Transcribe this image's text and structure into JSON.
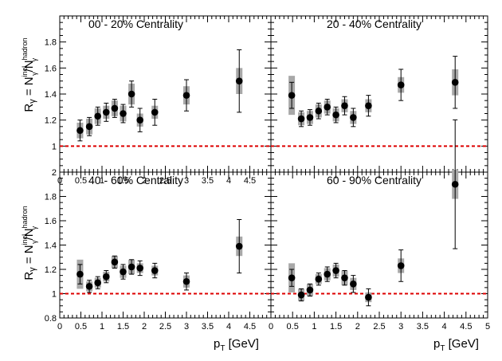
{
  "figure": {
    "y_axis_label": "Rγ = Nγincl/Nγhadron",
    "x_axis_label": "pT [GeV]"
  },
  "chart_data": [
    {
      "type": "scatter",
      "title": "00 - 20% Centrality",
      "xlabel": "",
      "ylabel": "Rγ = Nγincl/Nγhadron",
      "xlim": [
        0,
        5
      ],
      "ylim": [
        0.8,
        2
      ],
      "x_ticks": [
        "0",
        "0.5",
        "1",
        "1.5",
        "2",
        "2.5",
        "3",
        "3.5",
        "4",
        "4.5"
      ],
      "y_ticks": [
        "1",
        "1.2",
        "1.4",
        "1.6",
        "1.8"
      ],
      "reference_line": 1,
      "series": [
        {
          "x": [
            0.48,
            0.7,
            0.9,
            1.1,
            1.3,
            1.5,
            1.7,
            1.9,
            2.25,
            3.0,
            4.25
          ],
          "y": [
            1.12,
            1.15,
            1.23,
            1.26,
            1.29,
            1.25,
            1.4,
            1.2,
            1.26,
            1.39,
            1.5
          ],
          "stat_err": [
            0.08,
            0.07,
            0.07,
            0.07,
            0.07,
            0.07,
            0.1,
            0.09,
            0.1,
            0.12,
            0.24
          ],
          "sys_err": [
            0.06,
            0.06,
            0.06,
            0.05,
            0.06,
            0.06,
            0.08,
            0.05,
            0.05,
            0.07,
            0.1
          ]
        }
      ]
    },
    {
      "type": "scatter",
      "title": "20 - 40% Centrality",
      "xlabel": "",
      "ylabel": "",
      "xlim": [
        0,
        5
      ],
      "ylim": [
        0.8,
        2
      ],
      "x_ticks": [],
      "y_ticks": [],
      "reference_line": 1,
      "series": [
        {
          "x": [
            0.48,
            0.7,
            0.9,
            1.1,
            1.3,
            1.5,
            1.7,
            1.9,
            2.25,
            3.0,
            4.25
          ],
          "y": [
            1.39,
            1.21,
            1.22,
            1.27,
            1.3,
            1.24,
            1.31,
            1.22,
            1.31,
            1.47,
            1.49
          ],
          "stat_err": [
            0.1,
            0.06,
            0.06,
            0.06,
            0.06,
            0.06,
            0.07,
            0.07,
            0.08,
            0.12,
            0.2
          ],
          "sys_err": [
            0.15,
            0.05,
            0.05,
            0.05,
            0.05,
            0.05,
            0.05,
            0.05,
            0.05,
            0.06,
            0.1
          ]
        }
      ]
    },
    {
      "type": "scatter",
      "title": "40 - 60% Centrality",
      "xlabel": "pT [GeV]",
      "ylabel": "Rγ = Nγincl/Nγhadron",
      "xlim": [
        0,
        5
      ],
      "ylim": [
        0.8,
        2
      ],
      "x_ticks": [
        "0",
        "0.5",
        "1",
        "1.5",
        "2",
        "2.5",
        "3",
        "3.5",
        "4",
        "4.5"
      ],
      "y_ticks": [
        "0.8",
        "1",
        "1.2",
        "1.4",
        "1.6",
        "1.8",
        "2"
      ],
      "reference_line": 1,
      "series": [
        {
          "x": [
            0.48,
            0.7,
            0.9,
            1.1,
            1.3,
            1.5,
            1.7,
            1.9,
            2.25,
            3.0,
            4.25
          ],
          "y": [
            1.16,
            1.06,
            1.09,
            1.14,
            1.26,
            1.18,
            1.22,
            1.21,
            1.19,
            1.1,
            1.39
          ],
          "stat_err": [
            0.08,
            0.05,
            0.05,
            0.05,
            0.05,
            0.06,
            0.06,
            0.06,
            0.06,
            0.07,
            0.22
          ],
          "sys_err": [
            0.12,
            0.04,
            0.04,
            0.04,
            0.05,
            0.05,
            0.06,
            0.04,
            0.04,
            0.05,
            0.08
          ]
        }
      ]
    },
    {
      "type": "scatter",
      "title": "60 - 90% Centrality",
      "xlabel": "pT [GeV]",
      "ylabel": "",
      "xlim": [
        0,
        5
      ],
      "ylim": [
        0.8,
        2
      ],
      "x_ticks": [
        "0",
        "0.5",
        "1",
        "1.5",
        "2",
        "2.5",
        "3",
        "3.5",
        "4",
        "4.5",
        "5"
      ],
      "y_ticks": [],
      "reference_line": 1,
      "series": [
        {
          "x": [
            0.48,
            0.7,
            0.9,
            1.1,
            1.3,
            1.5,
            1.7,
            1.9,
            2.25,
            3.0,
            4.25
          ],
          "y": [
            1.13,
            0.99,
            1.03,
            1.12,
            1.16,
            1.19,
            1.13,
            1.08,
            0.97,
            1.23,
            1.9
          ],
          "stat_err": [
            0.07,
            0.05,
            0.05,
            0.05,
            0.06,
            0.06,
            0.06,
            0.07,
            0.07,
            0.13,
            0.53
          ],
          "sys_err": [
            0.12,
            0.05,
            0.05,
            0.04,
            0.05,
            0.05,
            0.06,
            0.05,
            0.04,
            0.06,
            0.12
          ]
        }
      ]
    }
  ],
  "colors": {
    "marker": "#000000",
    "sys_box": "#a8a8a8",
    "reference_line": "#dd0000"
  }
}
